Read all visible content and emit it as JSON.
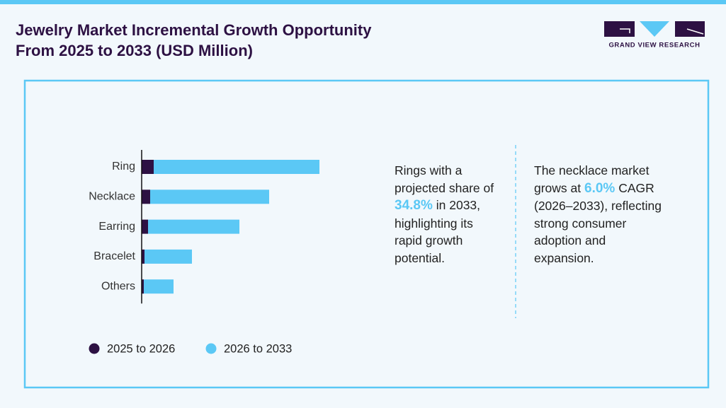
{
  "header": {
    "title_lines": [
      "Jewelry Market Incremental Growth Opportunity",
      "From 2025 to 2033 (USD Million)"
    ],
    "logo_text": "GRAND VIEW RESEARCH"
  },
  "chart_data": {
    "type": "bar",
    "orientation": "horizontal",
    "stacked": true,
    "categories": [
      "Ring",
      "Necklace",
      "Earring",
      "Bracelet",
      "Others"
    ],
    "series": [
      {
        "name": "2025 to 2026",
        "color": "#2d1143",
        "values": [
          17,
          12,
          9,
          4,
          3
        ]
      },
      {
        "name": "2026 to 2033",
        "color": "#5bc8f5",
        "values": [
          234,
          168,
          129,
          67,
          42
        ]
      }
    ]
  },
  "callouts": [
    {
      "before": "Rings with a projected share of",
      "value": "34.8%",
      "after": "in 2033, highlighting its rapid growth potential."
    },
    {
      "before": "The necklace market grows at",
      "value": "6.0%",
      "after": "CAGR (2026–2033), reflecting strong consumer adoption and expansion."
    }
  ]
}
